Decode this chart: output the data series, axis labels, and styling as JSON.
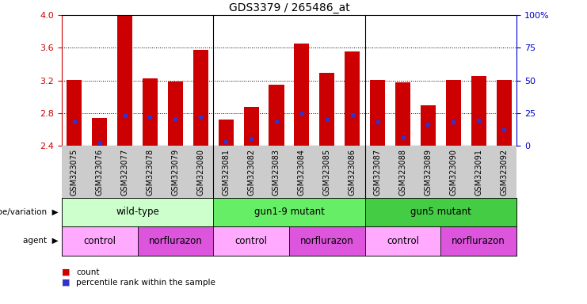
{
  "title": "GDS3379 / 265486_at",
  "samples": [
    "GSM323075",
    "GSM323076",
    "GSM323077",
    "GSM323078",
    "GSM323079",
    "GSM323080",
    "GSM323081",
    "GSM323082",
    "GSM323083",
    "GSM323084",
    "GSM323085",
    "GSM323086",
    "GSM323087",
    "GSM323088",
    "GSM323089",
    "GSM323090",
    "GSM323091",
    "GSM323092"
  ],
  "counts": [
    3.21,
    2.74,
    4.0,
    3.23,
    3.19,
    3.58,
    2.72,
    2.88,
    3.15,
    3.65,
    3.29,
    3.56,
    3.21,
    3.18,
    2.9,
    3.21,
    3.26,
    3.21
  ],
  "percentile_ranks": [
    2.7,
    2.44,
    2.77,
    2.75,
    2.73,
    2.75,
    2.45,
    2.49,
    2.7,
    2.8,
    2.72,
    2.78,
    2.69,
    2.5,
    2.66,
    2.69,
    2.71,
    2.6
  ],
  "ymin": 2.4,
  "ymax": 4.0,
  "yticks": [
    2.4,
    2.8,
    3.2,
    3.6,
    4.0
  ],
  "right_ytick_labels": [
    "0",
    "25",
    "50",
    "75",
    "100%"
  ],
  "bar_color": "#CC0000",
  "dot_color": "#3333CC",
  "bar_bottom": 2.4,
  "genotype_groups": [
    {
      "label": "wild-type",
      "start": 0,
      "end": 6,
      "color": "#ccffcc"
    },
    {
      "label": "gun1-9 mutant",
      "start": 6,
      "end": 12,
      "color": "#66ee66"
    },
    {
      "label": "gun5 mutant",
      "start": 12,
      "end": 18,
      "color": "#44cc44"
    }
  ],
  "agent_groups": [
    {
      "label": "control",
      "start": 0,
      "end": 3,
      "color": "#ffaaff"
    },
    {
      "label": "norflurazon",
      "start": 3,
      "end": 6,
      "color": "#dd55dd"
    },
    {
      "label": "control",
      "start": 6,
      "end": 9,
      "color": "#ffaaff"
    },
    {
      "label": "norflurazon",
      "start": 9,
      "end": 12,
      "color": "#dd55dd"
    },
    {
      "label": "control",
      "start": 12,
      "end": 15,
      "color": "#ffaaff"
    },
    {
      "label": "norflurazon",
      "start": 15,
      "end": 18,
      "color": "#dd55dd"
    }
  ],
  "legend_red_color": "#CC0000",
  "legend_blue_color": "#3333CC",
  "left_tick_color": "#CC0000",
  "right_tick_color": "#0000CC",
  "xtick_bg_color": "#cccccc",
  "fig_width": 7.41,
  "fig_height": 3.84
}
